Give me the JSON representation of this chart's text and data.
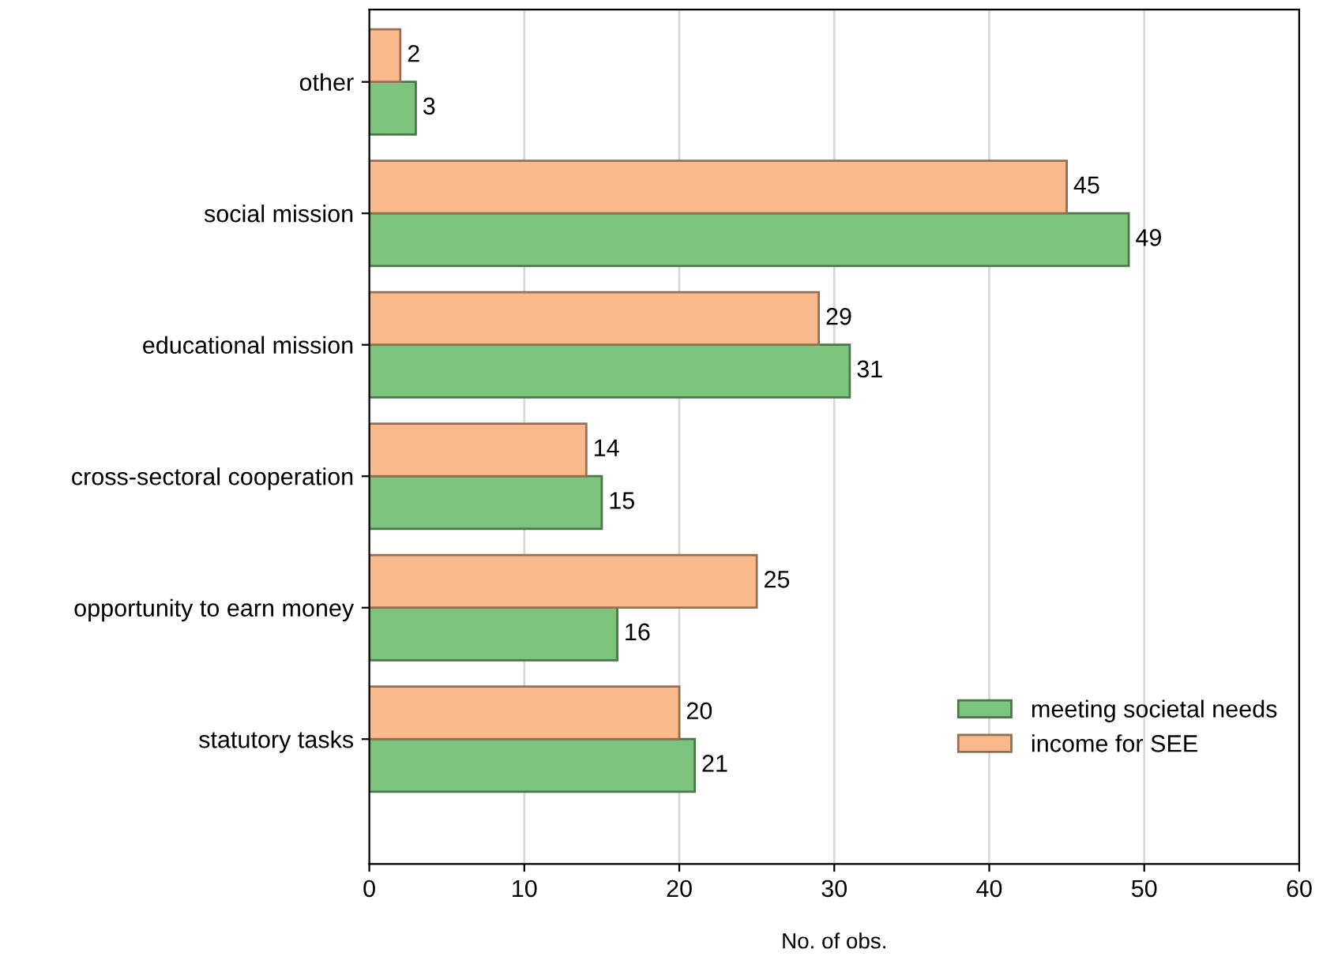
{
  "chart_data": {
    "type": "bar",
    "orientation": "horizontal",
    "xlabel": "No. of obs.",
    "categories": [
      "other",
      "social mission",
      "educational mission",
      "cross-sectoral cooperation",
      "opportunity to earn money",
      "statutory tasks"
    ],
    "series": [
      {
        "name": "meeting societal needs",
        "color": "#7cc47c",
        "values": [
          3,
          49,
          31,
          15,
          16,
          21
        ]
      },
      {
        "name": "income for SEE",
        "color": "#f9b98a",
        "values": [
          2,
          45,
          29,
          14,
          25,
          20
        ]
      }
    ],
    "xlim": [
      0,
      60
    ],
    "xticks": [
      0,
      10,
      20,
      30,
      40,
      50,
      60
    ],
    "grid": "x",
    "legend": "bottom right",
    "data_labels": true
  }
}
